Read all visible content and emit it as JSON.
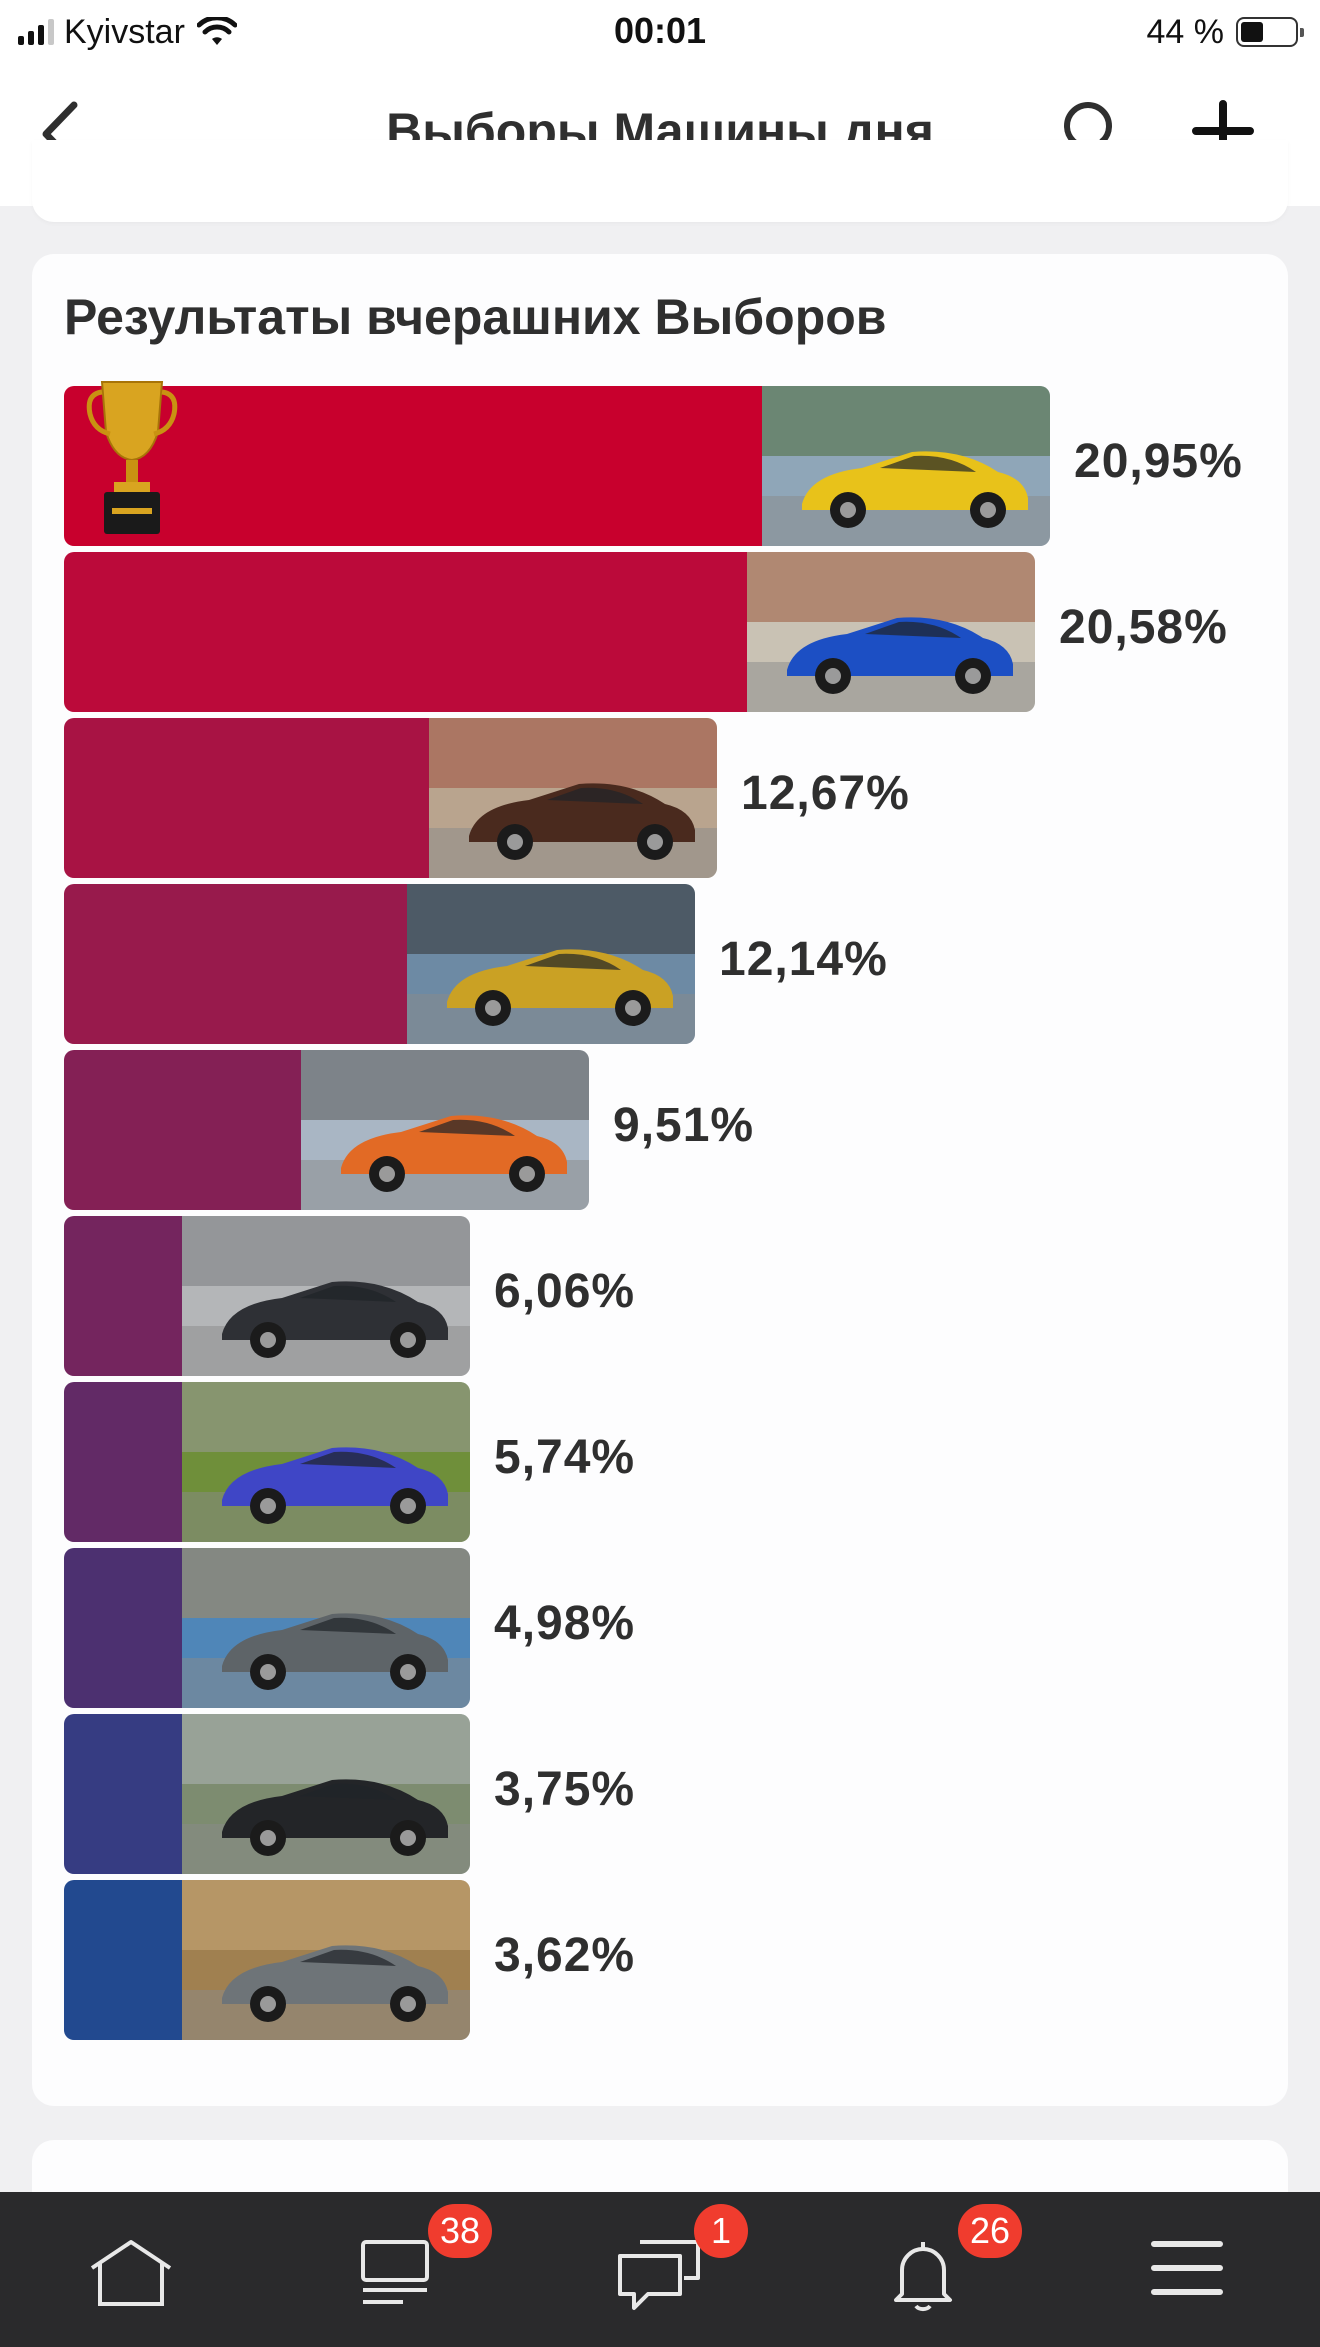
{
  "status_bar": {
    "carrier": "Kyivstar",
    "time": "00:01",
    "battery_text": "44 %",
    "battery_level": 0.44
  },
  "header": {
    "title": "Выборы Машины дня",
    "back_icon": "chevron-left-icon",
    "search_icon": "search-icon",
    "add_icon": "plus-icon"
  },
  "results": {
    "title": "Результаты вчерашних Выборов",
    "items": [
      {
        "percent": 20.95,
        "label": "20,95%",
        "color": "#c8002d",
        "photo_tones": [
          "#e8c21a",
          "#8fa6b8",
          "#4f6b3a"
        ],
        "winner": true
      },
      {
        "percent": 20.58,
        "label": "20,58%",
        "color": "#bb0a3a",
        "photo_tones": [
          "#1c4fc4",
          "#c9c2b4",
          "#9a5a3c"
        ]
      },
      {
        "percent": 12.67,
        "label": "12,67%",
        "color": "#a81344",
        "photo_tones": [
          "#4a2a1e",
          "#b9a48e",
          "#a05040"
        ]
      },
      {
        "percent": 12.14,
        "label": "12,14%",
        "color": "#981a4c",
        "photo_tones": [
          "#caa124",
          "#6d8aa4",
          "#333333"
        ]
      },
      {
        "percent": 9.51,
        "label": "9,51%",
        "color": "#842055",
        "photo_tones": [
          "#e26a25",
          "#a9b6c4",
          "#5a5a5a"
        ]
      },
      {
        "percent": 6.06,
        "label": "6,06%",
        "color": "#74255e",
        "photo_tones": [
          "#2e3035",
          "#b4b6b8",
          "#7a7c80"
        ]
      },
      {
        "percent": 5.74,
        "label": "5,74%",
        "color": "#622a66",
        "photo_tones": [
          "#3f46c6",
          "#6f8f3a",
          "#9a9a9a"
        ]
      },
      {
        "percent": 4.98,
        "label": "4,98%",
        "color": "#4c3070",
        "photo_tones": [
          "#5e6468",
          "#4f86b8",
          "#b08a56"
        ]
      },
      {
        "percent": 3.75,
        "label": "3,75%",
        "color": "#363c82",
        "photo_tones": [
          "#232528",
          "#7d8c70",
          "#aeb4b8"
        ]
      },
      {
        "percent": 3.62,
        "label": "3,62%",
        "color": "#22498f",
        "photo_tones": [
          "#6e7478",
          "#a08050",
          "#c9a878"
        ]
      }
    ]
  },
  "tabbar": {
    "tabs": [
      {
        "icon": "home-icon",
        "badge": ""
      },
      {
        "icon": "feed-icon",
        "badge": "38"
      },
      {
        "icon": "messages-icon",
        "badge": "1"
      },
      {
        "icon": "bell-icon",
        "badge": "26"
      },
      {
        "icon": "menu-icon",
        "badge": ""
      }
    ]
  }
}
